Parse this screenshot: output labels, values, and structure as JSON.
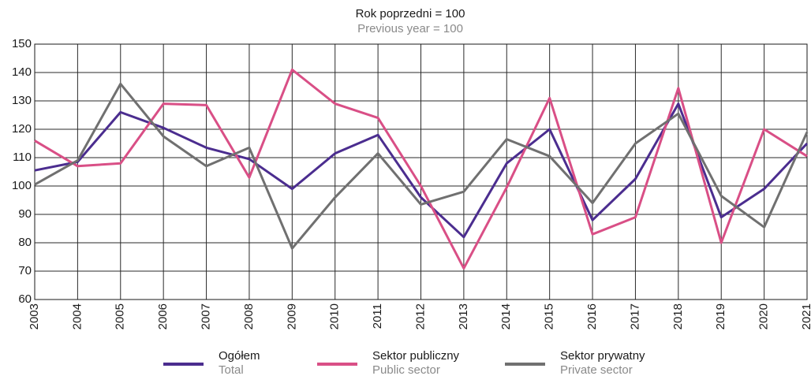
{
  "chart_data": {
    "type": "line",
    "title": "Rok poprzedni = 100",
    "subtitle": "Previous year = 100",
    "categories": [
      "2003",
      "2004",
      "2005",
      "2006",
      "2007",
      "2008",
      "2009",
      "2010",
      "2011",
      "2012",
      "2013",
      "2014",
      "2015",
      "2016",
      "2017",
      "2018",
      "2019",
      "2020",
      "2021"
    ],
    "series": [
      {
        "name": "Ogółem",
        "name_en": "Total",
        "color": "#4b2d8f",
        "values": [
          105.5,
          108.5,
          126,
          120.5,
          113.5,
          109.5,
          99,
          111.5,
          118,
          96,
          82,
          108,
          120,
          88,
          102.5,
          129,
          89,
          99,
          115
        ]
      },
      {
        "name": "Sektor publiczny",
        "name_en": "Public sector",
        "color": "#d94f86",
        "values": [
          116,
          107,
          108,
          129,
          128.5,
          103,
          141,
          129,
          124,
          100,
          71,
          99.5,
          131,
          83,
          89,
          134.5,
          80,
          120,
          110.5
        ]
      },
      {
        "name": "Sektor prywatny",
        "name_en": "Private sector",
        "color": "#707070",
        "values": [
          100.5,
          109,
          136,
          117.5,
          107,
          113.5,
          78,
          96,
          111.5,
          93.5,
          98,
          116.5,
          110.5,
          94,
          115,
          125.5,
          96.5,
          85.5,
          119
        ]
      }
    ],
    "ylim": [
      60,
      150
    ],
    "yticks": [
      60,
      70,
      80,
      90,
      100,
      110,
      120,
      130,
      140,
      150
    ],
    "grid": true
  }
}
